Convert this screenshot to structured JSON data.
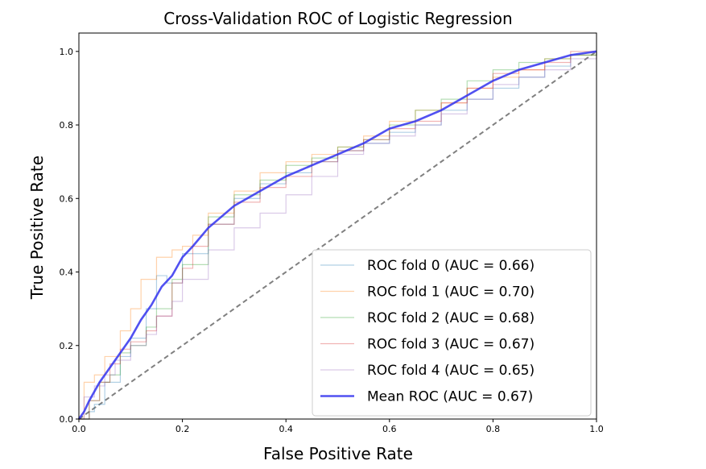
{
  "chart_data": {
    "type": "line",
    "title": "Cross-Validation ROC of Logistic Regression",
    "xlabel": "False Positive Rate",
    "ylabel": "True Positive Rate",
    "xlim": [
      0.0,
      1.0
    ],
    "ylim": [
      0.0,
      1.05
    ],
    "x_ticks": [
      "0.0",
      "0.2",
      "0.4",
      "0.6",
      "0.8",
      "1.0"
    ],
    "y_ticks": [
      "0.0",
      "0.2",
      "0.4",
      "0.6",
      "0.8",
      "1.0"
    ],
    "grid": false,
    "legend_position": "lower-right",
    "chance_line": {
      "x": [
        0,
        1
      ],
      "y": [
        0,
        1
      ],
      "color": "#808080",
      "style": "dashed"
    },
    "series": [
      {
        "name": "ROC fold 0 (AUC = 0.66)",
        "color": "#1f77b4",
        "x": [
          0,
          0.02,
          0.03,
          0.05,
          0.08,
          0.1,
          0.13,
          0.15,
          0.17,
          0.2,
          0.25,
          0.3,
          0.35,
          0.4,
          0.45,
          0.5,
          0.55,
          0.6,
          0.65,
          0.7,
          0.75,
          0.8,
          0.85,
          0.9,
          0.95,
          1.0
        ],
        "y": [
          0,
          0.02,
          0.04,
          0.1,
          0.17,
          0.22,
          0.3,
          0.39,
          0.37,
          0.45,
          0.53,
          0.6,
          0.64,
          0.67,
          0.7,
          0.73,
          0.75,
          0.78,
          0.8,
          0.84,
          0.87,
          0.9,
          0.93,
          0.96,
          0.99,
          1.0
        ]
      },
      {
        "name": "ROC fold 1 (AUC = 0.70)",
        "color": "#ff7f0e",
        "x": [
          0,
          0.01,
          0.03,
          0.05,
          0.08,
          0.1,
          0.12,
          0.15,
          0.18,
          0.2,
          0.22,
          0.25,
          0.3,
          0.35,
          0.4,
          0.45,
          0.5,
          0.55,
          0.6,
          0.65,
          0.7,
          0.75,
          0.8,
          0.85,
          0.9,
          0.95,
          1.0
        ],
        "y": [
          0,
          0.1,
          0.12,
          0.17,
          0.24,
          0.3,
          0.38,
          0.44,
          0.46,
          0.47,
          0.5,
          0.56,
          0.62,
          0.67,
          0.7,
          0.72,
          0.74,
          0.77,
          0.81,
          0.84,
          0.86,
          0.9,
          0.93,
          0.95,
          0.98,
          0.99,
          1.0
        ]
      },
      {
        "name": "ROC fold 2 (AUC = 0.68)",
        "color": "#2ca02c",
        "x": [
          0,
          0.02,
          0.04,
          0.06,
          0.08,
          0.1,
          0.13,
          0.15,
          0.18,
          0.2,
          0.25,
          0.3,
          0.35,
          0.4,
          0.45,
          0.5,
          0.55,
          0.6,
          0.65,
          0.7,
          0.75,
          0.8,
          0.85,
          0.9,
          0.95,
          1.0
        ],
        "y": [
          0,
          0.05,
          0.1,
          0.12,
          0.18,
          0.2,
          0.25,
          0.3,
          0.38,
          0.42,
          0.55,
          0.61,
          0.65,
          0.69,
          0.71,
          0.74,
          0.76,
          0.8,
          0.84,
          0.87,
          0.92,
          0.95,
          0.97,
          0.98,
          0.99,
          1.0
        ]
      },
      {
        "name": "ROC fold 3 (AUC = 0.67)",
        "color": "#d62728",
        "x": [
          0,
          0.02,
          0.04,
          0.06,
          0.08,
          0.1,
          0.13,
          0.15,
          0.18,
          0.2,
          0.22,
          0.25,
          0.3,
          0.35,
          0.4,
          0.45,
          0.5,
          0.55,
          0.6,
          0.65,
          0.7,
          0.75,
          0.8,
          0.85,
          0.9,
          0.95,
          1.0
        ],
        "y": [
          0,
          0.05,
          0.1,
          0.15,
          0.19,
          0.21,
          0.24,
          0.28,
          0.37,
          0.41,
          0.47,
          0.53,
          0.59,
          0.63,
          0.66,
          0.7,
          0.73,
          0.76,
          0.79,
          0.81,
          0.86,
          0.9,
          0.94,
          0.95,
          0.97,
          1.0,
          1.0
        ]
      },
      {
        "name": "ROC fold 4 (AUC = 0.65)",
        "color": "#9467bd",
        "x": [
          0,
          0.01,
          0.03,
          0.05,
          0.07,
          0.1,
          0.13,
          0.15,
          0.18,
          0.2,
          0.25,
          0.3,
          0.35,
          0.4,
          0.45,
          0.5,
          0.55,
          0.6,
          0.65,
          0.7,
          0.75,
          0.8,
          0.85,
          0.9,
          0.95,
          1.0
        ],
        "y": [
          0,
          0.06,
          0.09,
          0.12,
          0.16,
          0.2,
          0.23,
          0.28,
          0.32,
          0.38,
          0.46,
          0.52,
          0.56,
          0.61,
          0.66,
          0.72,
          0.75,
          0.77,
          0.8,
          0.83,
          0.87,
          0.91,
          0.93,
          0.95,
          0.98,
          1.0
        ]
      },
      {
        "name": "Mean ROC (AUC = 0.67)",
        "color": "#3333ee",
        "x": [
          0,
          0.01,
          0.02,
          0.04,
          0.06,
          0.08,
          0.1,
          0.12,
          0.14,
          0.16,
          0.18,
          0.2,
          0.22,
          0.25,
          0.3,
          0.35,
          0.4,
          0.45,
          0.5,
          0.55,
          0.6,
          0.65,
          0.7,
          0.75,
          0.8,
          0.85,
          0.9,
          0.95,
          1.0
        ],
        "y": [
          0,
          0.02,
          0.05,
          0.1,
          0.14,
          0.18,
          0.22,
          0.27,
          0.31,
          0.36,
          0.39,
          0.44,
          0.47,
          0.52,
          0.58,
          0.62,
          0.66,
          0.69,
          0.72,
          0.75,
          0.79,
          0.81,
          0.84,
          0.88,
          0.92,
          0.95,
          0.97,
          0.99,
          1.0
        ]
      }
    ]
  }
}
